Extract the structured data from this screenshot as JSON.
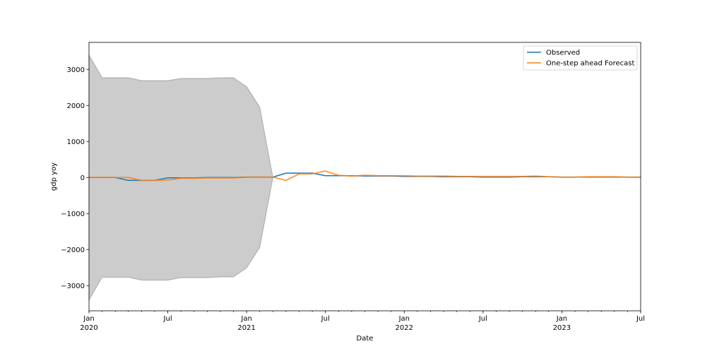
{
  "chart_data": {
    "type": "line",
    "title": "",
    "xlabel": "Date",
    "ylabel": "gdp yoy",
    "x_axis_type": "date",
    "x": [
      "2020-01",
      "2020-02",
      "2020-03",
      "2020-04",
      "2020-05",
      "2020-06",
      "2020-07",
      "2020-08",
      "2020-09",
      "2020-10",
      "2020-11",
      "2020-12",
      "2021-01",
      "2021-02",
      "2021-03",
      "2021-04",
      "2021-05",
      "2021-06",
      "2021-07",
      "2021-08",
      "2021-09",
      "2021-10",
      "2021-11",
      "2021-12",
      "2022-01",
      "2022-02",
      "2022-03",
      "2022-04",
      "2022-05",
      "2022-06",
      "2022-07",
      "2022-08",
      "2022-09",
      "2022-10",
      "2022-11",
      "2022-12",
      "2023-01",
      "2023-02",
      "2023-03",
      "2023-04",
      "2023-05",
      "2023-06",
      "2023-07"
    ],
    "xlim": [
      "2020-01",
      "2023-07"
    ],
    "ylim": [
      -3700,
      3750
    ],
    "y_ticks": [
      -3000,
      -2000,
      -1000,
      0,
      1000,
      2000,
      3000
    ],
    "x_ticks": [
      {
        "date": "2020-01",
        "label": "Jan",
        "sublabel": "2020"
      },
      {
        "date": "2020-07",
        "label": "Jul",
        "sublabel": ""
      },
      {
        "date": "2021-01",
        "label": "Jan",
        "sublabel": "2021"
      },
      {
        "date": "2021-07",
        "label": "Jul",
        "sublabel": ""
      },
      {
        "date": "2022-01",
        "label": "Jan",
        "sublabel": "2022"
      },
      {
        "date": "2022-07",
        "label": "Jul",
        "sublabel": ""
      },
      {
        "date": "2023-01",
        "label": "Jan",
        "sublabel": "2023"
      },
      {
        "date": "2023-07",
        "label": "Jul",
        "sublabel": ""
      }
    ],
    "grid": false,
    "legend_position": "top-right",
    "series": [
      {
        "name": "Observed",
        "color": "#1f77b4",
        "values": [
          0,
          0,
          0,
          -80,
          -80,
          -80,
          -10,
          -10,
          -10,
          0,
          0,
          0,
          10,
          10,
          10,
          120,
          120,
          120,
          50,
          50,
          50,
          40,
          40,
          40,
          30,
          30,
          30,
          20,
          20,
          20,
          10,
          10,
          10,
          20,
          20,
          20,
          10,
          10,
          10,
          10,
          10,
          10,
          5
        ]
      },
      {
        "name": "One-step ahead Forecast",
        "color": "#ff7f0e",
        "values": [
          0,
          0,
          0,
          0,
          -80,
          -80,
          -70,
          -20,
          -20,
          -10,
          -10,
          -10,
          10,
          10,
          10,
          -80,
          100,
          100,
          180,
          60,
          40,
          60,
          50,
          50,
          50,
          40,
          40,
          40,
          30,
          30,
          30,
          30,
          30,
          30,
          40,
          20,
          10,
          10,
          20,
          20,
          20,
          10,
          10
        ]
      }
    ],
    "confidence_interval": {
      "color": "#000000",
      "opacity": 0.2,
      "upper": [
        3400,
        2770,
        2770,
        2770,
        2690,
        2690,
        2690,
        2750,
        2750,
        2750,
        2770,
        2770,
        2520,
        1950,
        0,
        120,
        120,
        120,
        50,
        50,
        50,
        40,
        40,
        40,
        30,
        30,
        30,
        20,
        20,
        20,
        10,
        10,
        10,
        20,
        20,
        20,
        10,
        10,
        10,
        10,
        10,
        10,
        5
      ],
      "lower": [
        -3400,
        -2770,
        -2770,
        -2770,
        -2850,
        -2850,
        -2850,
        -2780,
        -2780,
        -2780,
        -2760,
        -2760,
        -2510,
        -1940,
        0,
        120,
        120,
        120,
        50,
        50,
        50,
        40,
        40,
        40,
        30,
        30,
        30,
        20,
        20,
        20,
        10,
        10,
        10,
        20,
        20,
        20,
        10,
        10,
        10,
        10,
        10,
        10,
        5
      ]
    }
  }
}
